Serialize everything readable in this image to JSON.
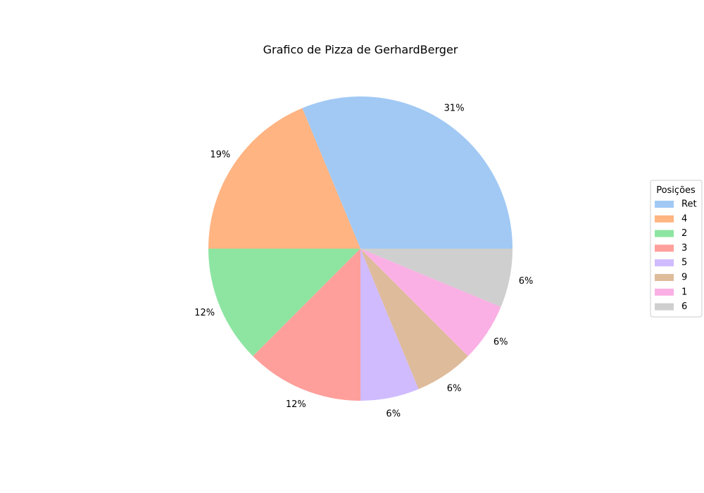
{
  "chart_data": {
    "type": "pie",
    "title": "Grafico de Pizza de GerhardBerger",
    "categories": [
      "Ret",
      "4",
      "2",
      "3",
      "5",
      "9",
      "1",
      "6"
    ],
    "values": [
      31.25,
      18.75,
      12.5,
      12.5,
      6.25,
      6.25,
      6.25,
      6.25
    ],
    "labels": [
      "31%",
      "19%",
      "12%",
      "12%",
      "6%",
      "6%",
      "6%",
      "6%"
    ],
    "colors": [
      "#a1c9f4",
      "#ffb482",
      "#8de5a1",
      "#ff9f9b",
      "#d0bbff",
      "#debb9b",
      "#fab0e4",
      "#cfcfcf"
    ],
    "start_angle_deg": 0,
    "direction": "counterclockwise",
    "legend": {
      "title": "Posições",
      "placement": "center-right"
    }
  }
}
